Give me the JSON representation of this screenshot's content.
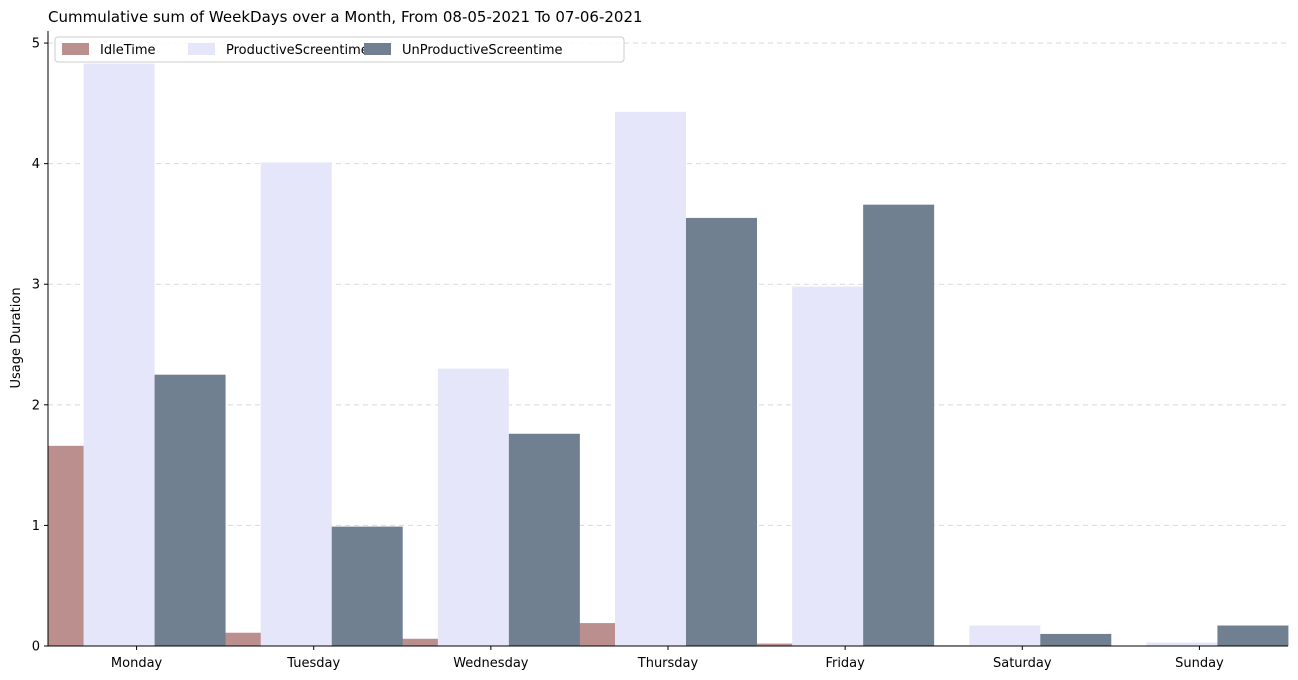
{
  "chart_data": {
    "type": "bar",
    "title": "Cummulative sum of WeekDays over a Month, From 08-05-2021 To 07-06-2021",
    "xlabel": "",
    "ylabel": "Usage Duration",
    "categories": [
      "Monday",
      "Tuesday",
      "Wednesday",
      "Thursday",
      "Friday",
      "Saturday",
      "Sunday"
    ],
    "series": [
      {
        "name": "IdleTime",
        "color": "#bc8f8f",
        "values": [
          1.66,
          0.11,
          0.06,
          0.19,
          0.02,
          0.005,
          0.0
        ]
      },
      {
        "name": "ProductiveScreentime",
        "color": "#e6e6fa",
        "values": [
          4.83,
          4.01,
          2.3,
          4.43,
          2.98,
          0.17,
          0.03
        ]
      },
      {
        "name": "UnProductiveScreentime",
        "color": "#708090",
        "values": [
          2.25,
          0.99,
          1.76,
          3.55,
          3.66,
          0.1,
          0.17
        ]
      }
    ],
    "ylim": [
      0,
      5.1
    ],
    "yticks": [
      "0",
      "1",
      "2",
      "3",
      "4",
      "5"
    ],
    "grid": "y-dashed",
    "legend_position": "top-left"
  }
}
